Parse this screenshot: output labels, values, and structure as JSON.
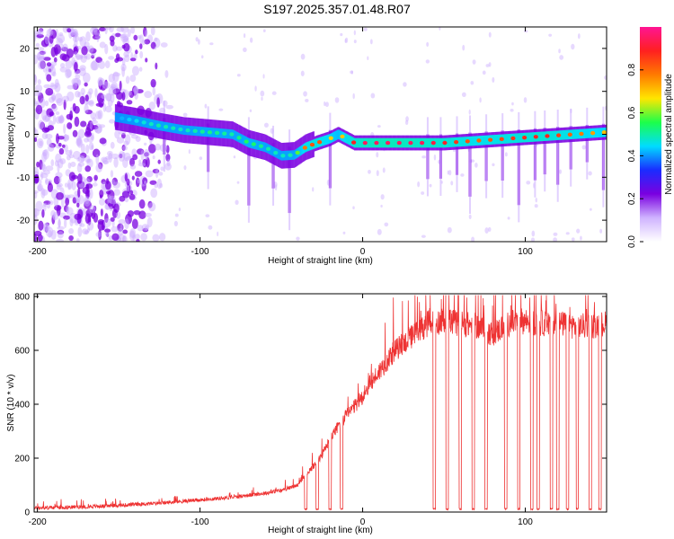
{
  "title": "S197.2025.357.01.48.R07",
  "colors": {
    "axis": "#000000",
    "snr_line": "#ee3333",
    "spec_scatter": "#7a00e0",
    "spec_track_core": "#ff2a2a",
    "colormap": [
      "#ffffff",
      "#cfb3ff",
      "#7a00e0",
      "#1a2cff",
      "#00dcff",
      "#1cff4a",
      "#ffe600",
      "#ff7a00",
      "#ff2020",
      "#ff1493"
    ]
  },
  "chart_data": [
    {
      "type": "heatmap",
      "name": "spectrogram",
      "xlabel": "Height of straight line (km)",
      "ylabel": "Frequency (Hz)",
      "xlim": [
        -202,
        150
      ],
      "ylim": [
        -25,
        25
      ],
      "xticks": [
        -200,
        -100,
        0,
        100
      ],
      "yticks": [
        -20,
        -10,
        0,
        10,
        20
      ],
      "colorbar": {
        "label": "Normalized spectral amplitude",
        "range": [
          0.0,
          1.0
        ],
        "ticks": [
          0.0,
          0.2,
          0.4,
          0.6,
          0.8
        ]
      },
      "track": {
        "x": [
          -152,
          -140,
          -125,
          -110,
          -95,
          -80,
          -70,
          -60,
          -50,
          -42,
          -35,
          -28,
          -20,
          -15,
          -10,
          -5,
          0,
          10,
          20,
          35,
          50,
          70,
          90,
          110,
          130,
          150
        ],
        "y": [
          4.0,
          3.2,
          2.0,
          1.0,
          0.5,
          0.0,
          -2.0,
          -3.0,
          -5.0,
          -4.8,
          -3.0,
          -2.0,
          -1.0,
          0.0,
          -1.0,
          -2.0,
          -2.0,
          -2.0,
          -2.0,
          -2.0,
          -2.0,
          -1.5,
          -1.0,
          -0.5,
          0.0,
          0.5
        ],
        "amplitude": [
          0.3,
          0.35,
          0.4,
          0.38,
          0.42,
          0.4,
          0.45,
          0.4,
          0.38,
          0.4,
          0.7,
          0.75,
          0.6,
          0.5,
          0.7,
          0.8,
          0.85,
          0.9,
          0.9,
          0.85,
          0.8,
          0.7,
          0.75,
          0.8,
          0.7,
          0.6
        ]
      },
      "spike_positions_km": [
        -122,
        -95,
        -70,
        -55,
        -45,
        -20,
        40,
        48,
        58,
        66,
        76,
        86,
        96,
        106,
        112,
        120,
        128,
        138,
        148
      ],
      "noise_region_km": [
        -202,
        -135
      ]
    },
    {
      "type": "line",
      "name": "snr",
      "xlabel": "Height of straight line (km)",
      "ylabel": "SNR (10 * v/v)",
      "xlim": [
        -202,
        150
      ],
      "ylim": [
        0,
        810
      ],
      "xticks": [
        -200,
        -100,
        0,
        100
      ],
      "yticks": [
        0,
        200,
        400,
        600,
        800
      ],
      "envelope": {
        "x": [
          -202,
          -180,
          -160,
          -140,
          -120,
          -100,
          -80,
          -60,
          -50,
          -40,
          -30,
          -25,
          -20,
          -15,
          -10,
          -5,
          0,
          5,
          10,
          20,
          30,
          40,
          50,
          60,
          70,
          80,
          90,
          100,
          110,
          120,
          130,
          140,
          150
        ],
        "y": [
          15,
          18,
          22,
          28,
          35,
          45,
          55,
          70,
          80,
          100,
          170,
          210,
          270,
          320,
          360,
          390,
          430,
          480,
          520,
          600,
          650,
          700,
          710,
          700,
          690,
          660,
          700,
          710,
          700,
          700,
          690,
          690,
          700
        ]
      },
      "dropouts_km": [
        -35,
        -28,
        -20,
        -13,
        44,
        52,
        60,
        68,
        76,
        88,
        96,
        104,
        108,
        116,
        120,
        126,
        132,
        140,
        146
      ]
    }
  ]
}
